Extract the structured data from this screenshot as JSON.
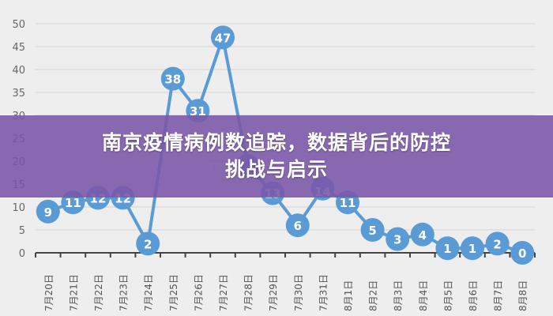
{
  "title_line1": "南京疫情病例数追踪，数据背后的防控",
  "title_line2": "挑战与启示",
  "chart_data": {
    "type": "line",
    "categories": [
      "7月20日",
      "7月21日",
      "7月22日",
      "7月23日",
      "7月24日",
      "7月25日",
      "7月26日",
      "7月27日",
      "7月28日",
      "7月29日",
      "7月30日",
      "7月31日",
      "8月1日",
      "8月2日",
      "8月3日",
      "8月4日",
      "8月5日",
      "8月6日",
      "8月7日",
      "8月8日"
    ],
    "values": [
      9,
      11,
      12,
      12,
      2,
      38,
      31,
      47,
      19,
      13,
      6,
      14,
      11,
      5,
      3,
      4,
      1,
      1,
      2,
      0
    ],
    "yticks": [
      0,
      5,
      10,
      15,
      20,
      25,
      30,
      35,
      40,
      45,
      50
    ],
    "ylim": [
      0,
      50
    ],
    "grid": true,
    "line_color": "#5b9bd5",
    "title": "",
    "xlabel": "",
    "ylabel": ""
  }
}
